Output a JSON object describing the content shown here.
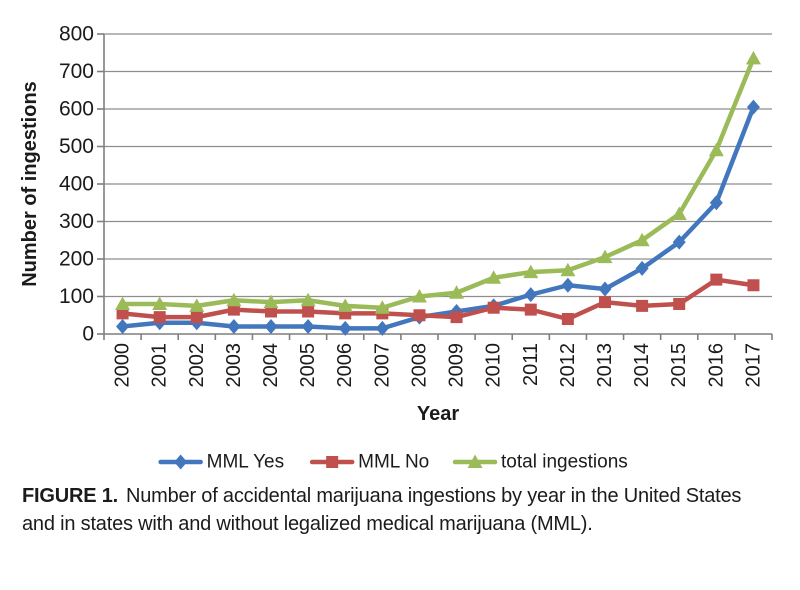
{
  "figure": {
    "caption_label": "FIGURE 1.",
    "caption_text": "Number of accidental marijuana ingestions by year in the United States and in states with and without legalized medical marijuana (MML)."
  },
  "chart_data": {
    "type": "line",
    "title": "",
    "xlabel": "Year",
    "ylabel": "Number of ingestions",
    "ylim": [
      0,
      800
    ],
    "ytick_step": 100,
    "grid": true,
    "legend_position": "bottom",
    "categories": [
      "2000",
      "2001",
      "2002",
      "2003",
      "2004",
      "2005",
      "2006",
      "2007",
      "2008",
      "2009",
      "2010",
      "2011",
      "2012",
      "2013",
      "2014",
      "2015",
      "2016",
      "2017"
    ],
    "series": [
      {
        "name": "MML Yes",
        "marker": "diamond",
        "color": "#4277BE",
        "values": [
          20,
          30,
          30,
          20,
          20,
          20,
          15,
          15,
          45,
          60,
          75,
          105,
          130,
          120,
          175,
          245,
          350,
          605
        ]
      },
      {
        "name": "MML No",
        "marker": "square",
        "color": "#C0504D",
        "values": [
          55,
          45,
          45,
          65,
          60,
          60,
          55,
          55,
          50,
          45,
          70,
          65,
          40,
          85,
          75,
          80,
          145,
          130
        ]
      },
      {
        "name": "total ingestions",
        "marker": "triangle",
        "color": "#9BBB59",
        "values": [
          80,
          80,
          75,
          90,
          85,
          90,
          75,
          70,
          100,
          110,
          150,
          165,
          170,
          205,
          250,
          320,
          490,
          735
        ]
      }
    ]
  },
  "style_colors": {
    "gridline": "#8E8E8E",
    "axis": "#7F7F7F",
    "text": "#1B1B1B"
  }
}
